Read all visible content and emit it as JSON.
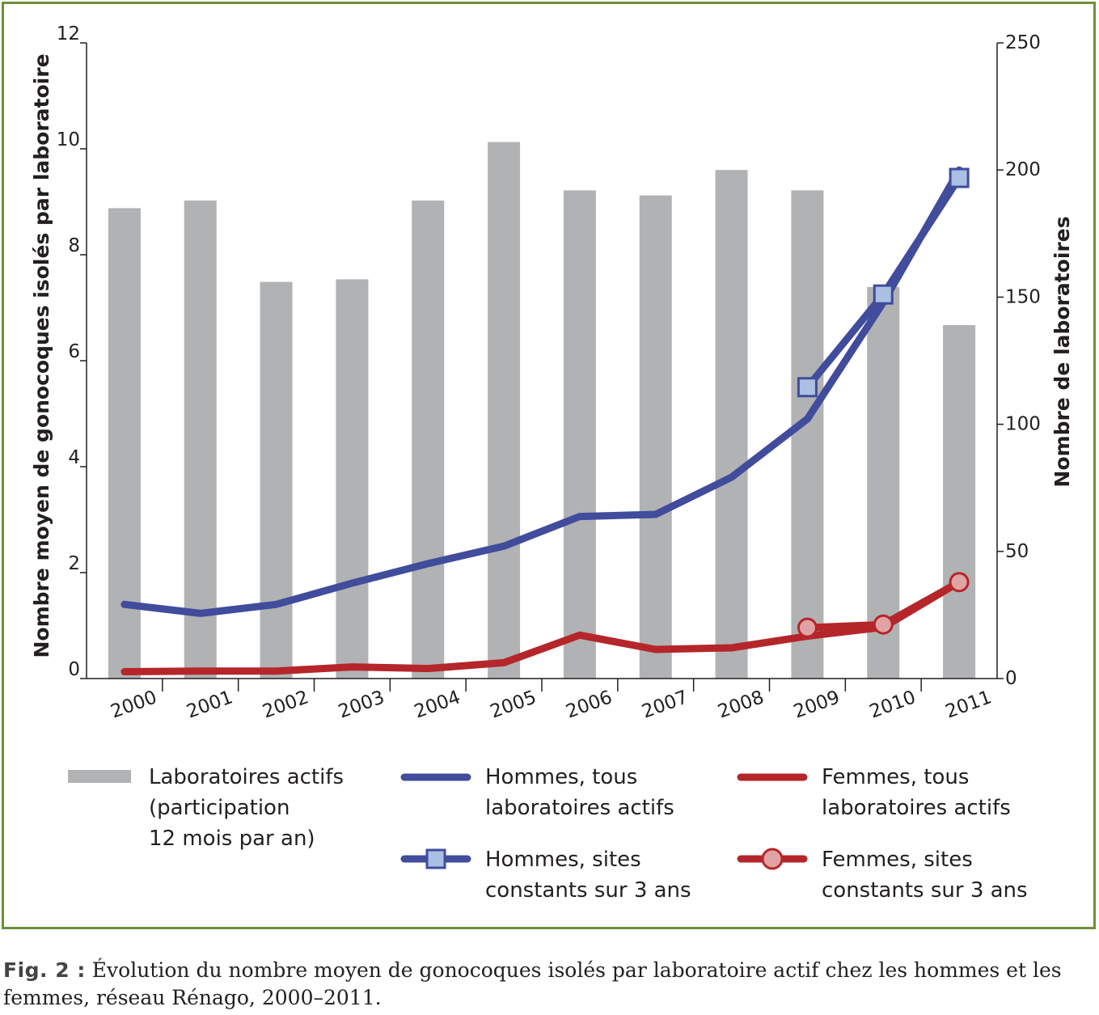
{
  "chart_data": {
    "type": "bar+line",
    "categories": [
      "2000",
      "2001",
      "2002",
      "2003",
      "2004",
      "2005",
      "2006",
      "2007",
      "2008",
      "2009",
      "2010",
      "2011"
    ],
    "left_axis": {
      "label": "Nombre moyen de gonocoques isolés par laboratoire",
      "ylim": [
        0,
        12
      ],
      "ticks": [
        "0",
        "2",
        "4",
        "6",
        "8",
        "10",
        "12"
      ]
    },
    "right_axis": {
      "label": "Nombre de laboratoires",
      "ylim": [
        0,
        250
      ],
      "ticks": [
        "0",
        "50",
        "100",
        "150",
        "200",
        "250"
      ]
    },
    "bars": {
      "name": "Laboratoires actifs (participation 12 mois par an)",
      "axis": "right",
      "color": "#b1b2b4",
      "values": [
        185,
        188,
        156,
        157,
        188,
        211,
        192,
        190,
        200,
        192,
        154,
        139
      ]
    },
    "series": [
      {
        "name": "Hommes, tous laboratoires actifs",
        "axis": "left",
        "color": "#414c9c",
        "marker": "none",
        "values": [
          1.4,
          1.23,
          1.4,
          1.8,
          2.17,
          2.5,
          3.06,
          3.1,
          3.8,
          4.9,
          7.1,
          9.6
        ]
      },
      {
        "name": "Femmes, tous laboratoires actifs",
        "axis": "left",
        "color": "#b5262a",
        "marker": "none",
        "values": [
          0.13,
          0.14,
          0.14,
          0.22,
          0.19,
          0.3,
          0.82,
          0.55,
          0.58,
          0.8,
          0.97,
          1.82
        ]
      },
      {
        "name": "Hommes, sites constants sur 3 ans",
        "axis": "left",
        "color": "#414c9c",
        "marker": "square",
        "marker_fill": "#a9c0e3",
        "values": [
          null,
          null,
          null,
          null,
          null,
          null,
          null,
          null,
          null,
          5.5,
          7.25,
          9.45
        ]
      },
      {
        "name": "Femmes, sites constants sur 3 ans",
        "axis": "left",
        "color": "#b5262a",
        "marker": "circle",
        "marker_fill": "#e0a3a3",
        "values": [
          null,
          null,
          null,
          null,
          null,
          null,
          null,
          null,
          null,
          0.96,
          1.02,
          1.82
        ]
      }
    ],
    "legend": [
      "Laboratoires actifs (participation 12 mois par an)",
      "Hommes, tous laboratoires actifs",
      "Femmes, tous laboratoires actifs",
      "Hommes, sites constants sur 3 ans",
      "Femmes, sites constants sur 3 ans"
    ],
    "legend_placement": "bottom",
    "grid": false
  },
  "legend_lines": {
    "bars": [
      "Laboratoires actifs",
      "(participation",
      "12 mois par an)"
    ],
    "men_all": [
      "Hommes, tous",
      "laboratoires actifs"
    ],
    "women_all": [
      "Femmes, tous",
      "laboratoires actifs"
    ],
    "men_const": [
      "Hommes, sites",
      "constants sur 3 ans"
    ],
    "women_const": [
      "Femmes, sites",
      "constants sur 3 ans"
    ]
  },
  "caption": {
    "fig_label": "Fig. 2 :",
    "text": " Évolution du nombre moyen de gonocoques isolés par laboratoire actif chez les hommes et les femmes, réseau Rénago, 2000–2011."
  }
}
